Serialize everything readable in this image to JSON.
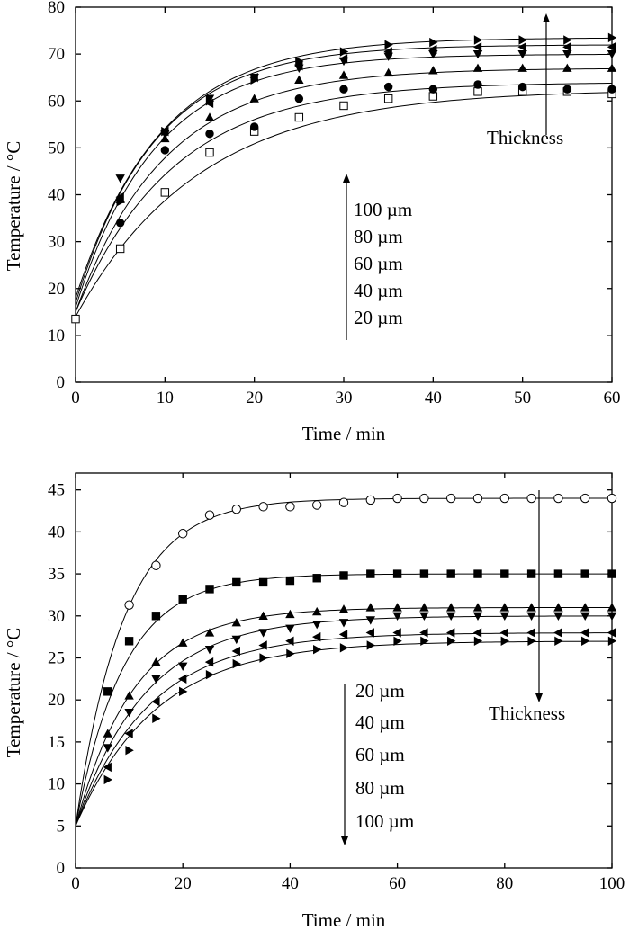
{
  "chart_data": [
    {
      "type": "scatter",
      "xlabel": "Time / min",
      "ylabel": "Temperature / °C",
      "xlim": [
        0,
        60
      ],
      "ylim": [
        0,
        80
      ],
      "xticks": [
        "0",
        "10",
        "20",
        "30",
        "40",
        "50",
        "60"
      ],
      "yticks": [
        "0",
        "10",
        "20",
        "30",
        "40",
        "50",
        "60",
        "70",
        "80"
      ],
      "annotation": "Thickness",
      "annotation_arrow": "up",
      "legend_arrow": "up",
      "legend_labels": [
        "100 µm",
        "80 µm",
        "60 µm",
        "40 µm",
        "20 µm"
      ],
      "grid": false,
      "series": [
        {
          "marker": "open-square",
          "x": [
            0,
            5,
            10,
            15,
            20,
            25,
            30,
            35,
            40,
            45,
            50,
            55,
            60
          ],
          "y": [
            13.5,
            28.5,
            40.5,
            49,
            53.5,
            56.5,
            59,
            60.5,
            61,
            62,
            62,
            62,
            61.5
          ],
          "fit": {
            "a": 14,
            "b": 48.5,
            "tau": 14
          }
        },
        {
          "marker": "filled-circle",
          "x": [
            5,
            10,
            15,
            20,
            25,
            30,
            35,
            40,
            45,
            50,
            55,
            60
          ],
          "y": [
            34,
            49.5,
            53,
            54.5,
            60.5,
            62.5,
            63,
            62.5,
            63.5,
            63,
            62.5,
            62.5
          ],
          "fit": {
            "a": 15,
            "b": 49,
            "tau": 11
          }
        },
        {
          "marker": "filled-triangle-up",
          "x": [
            5,
            10,
            15,
            20,
            25,
            30,
            35,
            40,
            45,
            50,
            55,
            60
          ],
          "y": [
            39,
            52,
            56.5,
            60.5,
            64.5,
            65.5,
            66,
            66.5,
            67,
            67,
            67,
            67
          ],
          "fit": {
            "a": 15,
            "b": 52,
            "tau": 10
          }
        },
        {
          "marker": "filled-triangle-down",
          "x": [
            5,
            10,
            15,
            20,
            25,
            30,
            35,
            40,
            45,
            50,
            55,
            60
          ],
          "y": [
            43.5,
            53,
            60.5,
            65,
            67,
            68.5,
            69.5,
            70,
            70,
            70,
            70,
            70
          ],
          "fit": {
            "a": 16,
            "b": 54,
            "tau": 9
          }
        },
        {
          "marker": "filled-triangle-left",
          "x": [
            5,
            10,
            15,
            20,
            25,
            30,
            35,
            40,
            45,
            50,
            55,
            60
          ],
          "y": [
            39.5,
            53.5,
            59.5,
            65,
            67.5,
            69,
            70.5,
            71,
            71.5,
            71.5,
            71.5,
            71.5
          ],
          "fit": {
            "a": 17,
            "b": 55,
            "tau": 9
          }
        },
        {
          "marker": "filled-triangle-right",
          "x": [
            5,
            10,
            15,
            20,
            25,
            30,
            35,
            40,
            45,
            50,
            55,
            60
          ],
          "y": [
            38.5,
            53.5,
            60,
            64.5,
            68.5,
            70.5,
            72,
            72.5,
            73,
            73,
            73,
            73.5
          ],
          "fit": {
            "a": 18,
            "b": 55.5,
            "tau": 9.5
          }
        }
      ]
    },
    {
      "type": "scatter",
      "xlabel": "Time / min",
      "ylabel": "Temperature / °C",
      "xlim": [
        0,
        100
      ],
      "ylim": [
        0,
        47
      ],
      "xticks": [
        "0",
        "20",
        "40",
        "60",
        "80",
        "100"
      ],
      "yticks": [
        "0",
        "5",
        "10",
        "15",
        "20",
        "25",
        "30",
        "35",
        "40",
        "45"
      ],
      "annotation": "Thickness",
      "annotation_arrow": "down",
      "legend_arrow": "down",
      "legend_labels": [
        "20 µm",
        "40 µm",
        "60 µm",
        "80 µm",
        "100 µm"
      ],
      "grid": false,
      "series": [
        {
          "marker": "open-circle",
          "x": [
            10,
            15,
            20,
            25,
            30,
            35,
            40,
            45,
            50,
            55,
            60,
            65,
            70,
            75,
            80,
            85,
            90,
            95,
            100
          ],
          "y": [
            31.3,
            36,
            39.8,
            42,
            42.7,
            43,
            43,
            43.2,
            43.5,
            43.8,
            44,
            44,
            44,
            44,
            44,
            44,
            44,
            44,
            44
          ],
          "fit": {
            "a": 5,
            "b": 39,
            "tau": 9
          }
        },
        {
          "marker": "filled-square",
          "x": [
            6,
            10,
            15,
            20,
            25,
            30,
            35,
            40,
            45,
            50,
            55,
            60,
            65,
            70,
            75,
            80,
            85,
            90,
            95,
            100
          ],
          "y": [
            21,
            27,
            30,
            32,
            33.2,
            34,
            34,
            34.2,
            34.5,
            34.8,
            35,
            35,
            35,
            35,
            35,
            35,
            35,
            35,
            35,
            35
          ],
          "fit": {
            "a": 5,
            "b": 30,
            "tau": 9
          }
        },
        {
          "marker": "filled-triangle-up",
          "x": [
            6,
            10,
            15,
            20,
            25,
            30,
            35,
            40,
            45,
            50,
            55,
            60,
            65,
            70,
            75,
            80,
            85,
            90,
            95,
            100
          ],
          "y": [
            16,
            20.5,
            24.5,
            26.8,
            28,
            29.2,
            30,
            30.2,
            30.5,
            30.8,
            31,
            31,
            31,
            31,
            31,
            31,
            31,
            31,
            31,
            31
          ],
          "fit": {
            "a": 5,
            "b": 26,
            "tau": 11
          }
        },
        {
          "marker": "filled-triangle-down",
          "x": [
            6,
            10,
            15,
            20,
            25,
            30,
            35,
            40,
            45,
            50,
            55,
            60,
            65,
            70,
            75,
            80,
            85,
            90,
            95,
            100
          ],
          "y": [
            14.3,
            18.5,
            22.5,
            24,
            26,
            27.2,
            28,
            28.5,
            29,
            29.2,
            29.5,
            30,
            30,
            30,
            30,
            30,
            30,
            30,
            30,
            30
          ],
          "fit": {
            "a": 5,
            "b": 25,
            "tau": 13
          }
        },
        {
          "marker": "filled-triangle-left",
          "x": [
            6,
            10,
            15,
            20,
            25,
            30,
            35,
            40,
            45,
            50,
            55,
            60,
            65,
            70,
            75,
            80,
            85,
            90,
            95,
            100
          ],
          "y": [
            12,
            16,
            19.8,
            22.5,
            24.5,
            25.8,
            26.5,
            27,
            27.5,
            27.8,
            28,
            28,
            28,
            28,
            28,
            28,
            28,
            28,
            28,
            28
          ],
          "fit": {
            "a": 5,
            "b": 23,
            "tau": 14
          }
        },
        {
          "marker": "filled-triangle-right",
          "x": [
            6,
            10,
            15,
            20,
            25,
            30,
            35,
            40,
            45,
            50,
            55,
            60,
            65,
            70,
            75,
            80,
            85,
            90,
            95,
            100
          ],
          "y": [
            10.5,
            14,
            17.8,
            21,
            23,
            24.3,
            25,
            25.5,
            26,
            26.2,
            26.5,
            27,
            27,
            27,
            27,
            27,
            27,
            27,
            27,
            27
          ],
          "fit": {
            "a": 5,
            "b": 22,
            "tau": 15
          }
        }
      ]
    }
  ]
}
